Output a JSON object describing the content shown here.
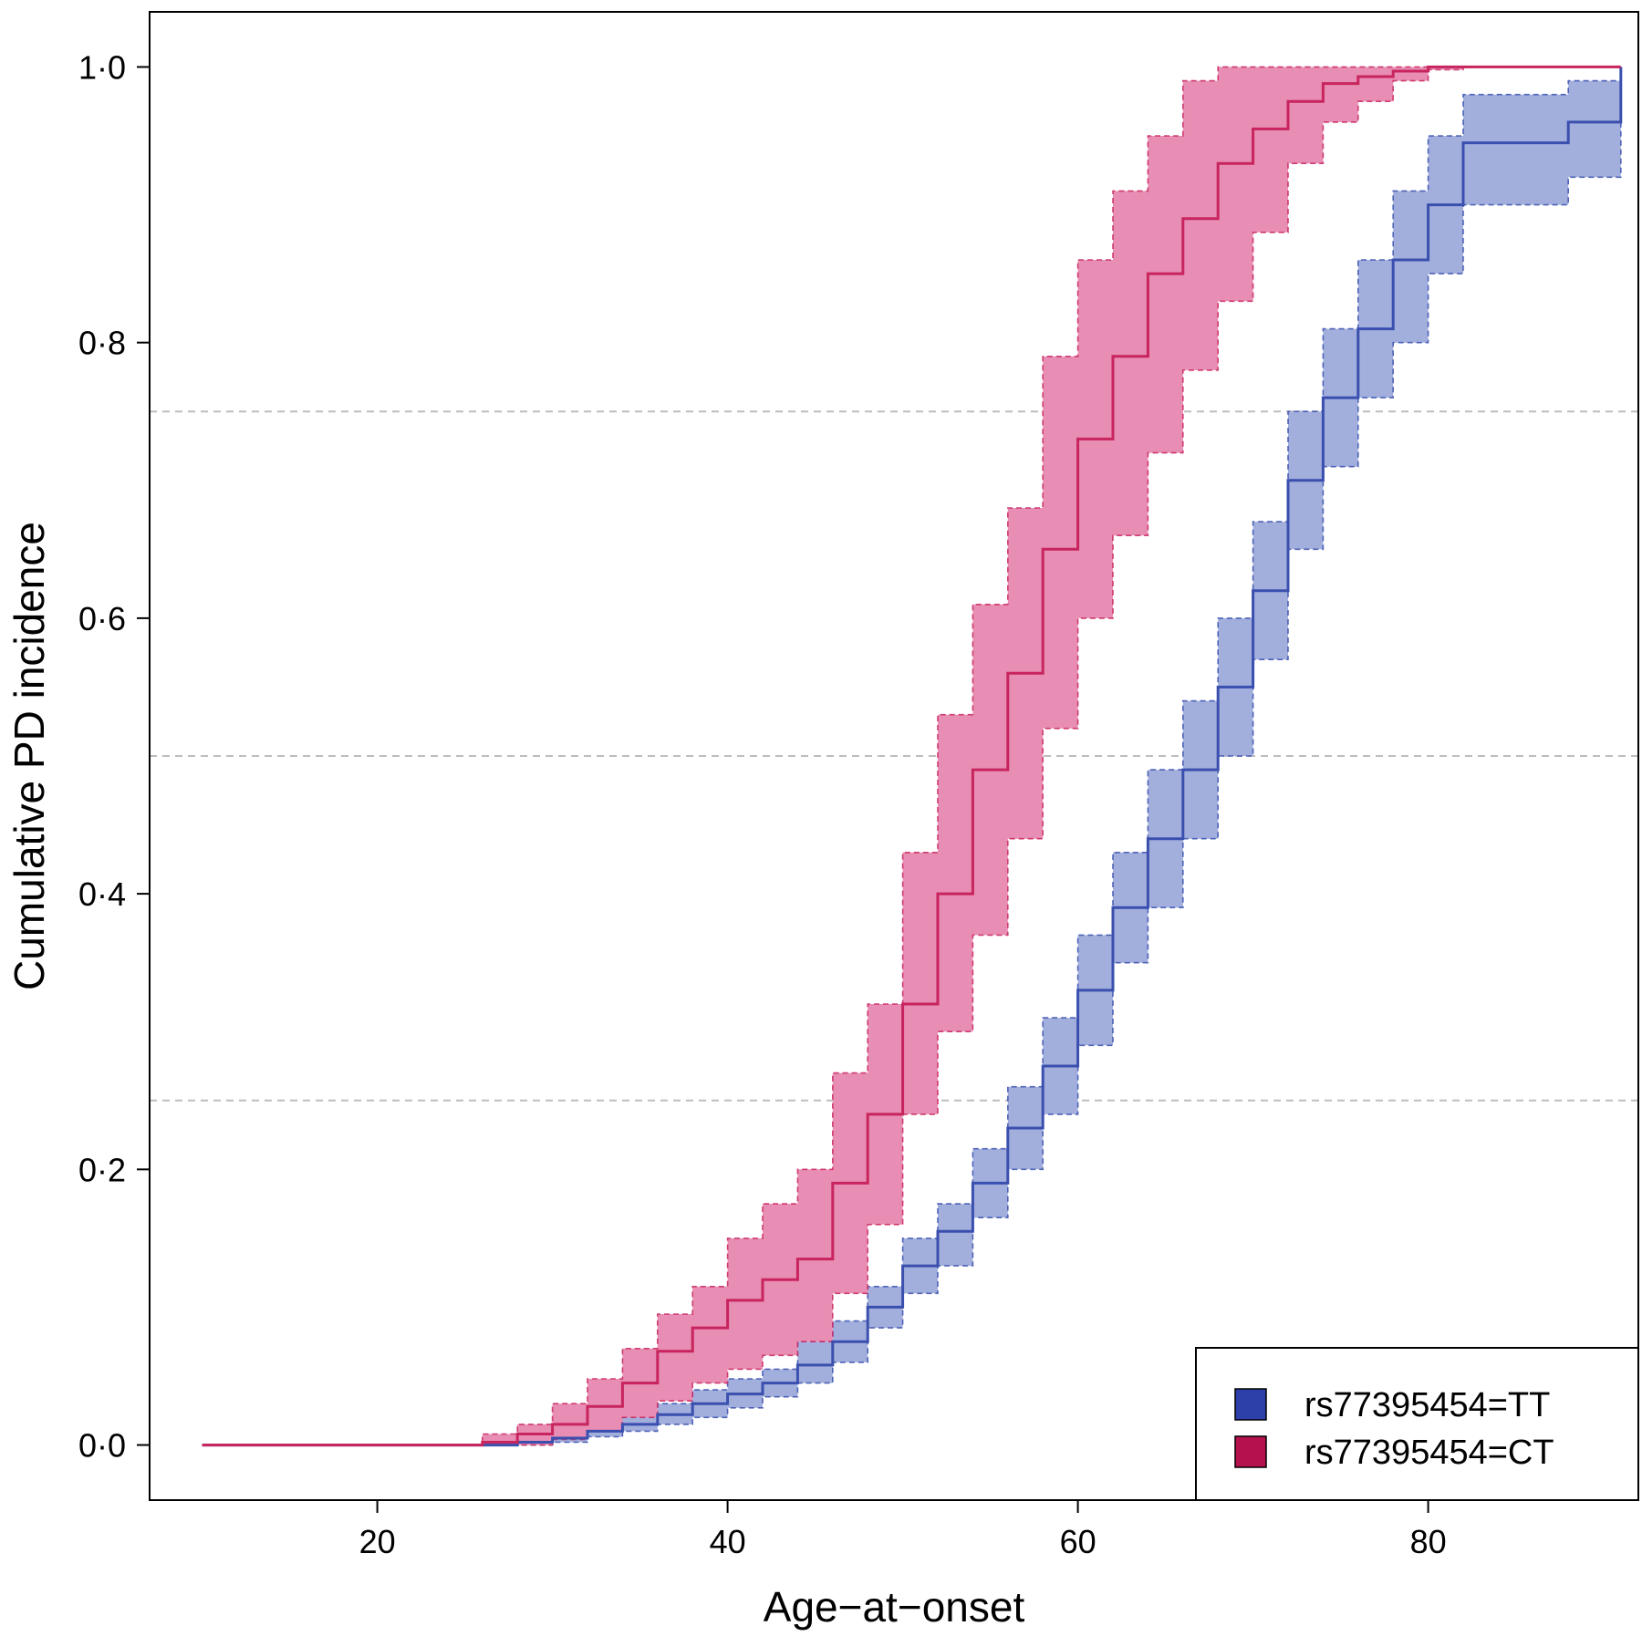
{
  "chart_data": {
    "type": "line",
    "title": "",
    "xlabel": "Age−at−onset",
    "ylabel": "Cumulative PD incidence",
    "xlim": [
      7,
      92
    ],
    "ylim": [
      -0.04,
      1.04
    ],
    "x_ticks": [
      {
        "value": 20,
        "label": "20"
      },
      {
        "value": 40,
        "label": "40"
      },
      {
        "value": 60,
        "label": "60"
      },
      {
        "value": 80,
        "label": "80"
      }
    ],
    "y_ticks": [
      {
        "value": 0.0,
        "label": "0·0"
      },
      {
        "value": 0.2,
        "label": "0·2"
      },
      {
        "value": 0.4,
        "label": "0·4"
      },
      {
        "value": 0.6,
        "label": "0·6"
      },
      {
        "value": 0.8,
        "label": "0·8"
      },
      {
        "value": 1.0,
        "label": "1·0"
      }
    ],
    "reference_lines_y": [
      0.25,
      0.5,
      0.75
    ],
    "grid": false,
    "legend_position": "bottom-right",
    "series": [
      {
        "name": "rs77395454=TT",
        "line_color": "#3a4fae",
        "fill_color": "#a2afdd",
        "legend_color": "#2d3fa8",
        "x": [
          10,
          24,
          28,
          30,
          32,
          34,
          36,
          38,
          40,
          42,
          44,
          46,
          48,
          50,
          52,
          54,
          56,
          58,
          60,
          62,
          64,
          66,
          68,
          70,
          72,
          74,
          76,
          78,
          80,
          82,
          84,
          86,
          88,
          91
        ],
        "y": [
          0,
          0,
          0.002,
          0.005,
          0.01,
          0.015,
          0.022,
          0.03,
          0.037,
          0.045,
          0.058,
          0.075,
          0.1,
          0.13,
          0.155,
          0.19,
          0.23,
          0.275,
          0.33,
          0.39,
          0.44,
          0.49,
          0.55,
          0.62,
          0.7,
          0.76,
          0.81,
          0.86,
          0.9,
          0.945,
          0.945,
          0.945,
          0.96,
          1.0
        ],
        "lower": [
          0,
          0,
          0,
          0.002,
          0.006,
          0.01,
          0.015,
          0.02,
          0.027,
          0.035,
          0.045,
          0.06,
          0.085,
          0.11,
          0.13,
          0.165,
          0.2,
          0.24,
          0.29,
          0.35,
          0.39,
          0.44,
          0.5,
          0.57,
          0.65,
          0.71,
          0.76,
          0.8,
          0.85,
          0.9,
          0.9,
          0.9,
          0.92,
          1.0
        ],
        "upper": [
          0,
          0,
          0.005,
          0.008,
          0.015,
          0.022,
          0.03,
          0.04,
          0.048,
          0.055,
          0.075,
          0.09,
          0.115,
          0.15,
          0.175,
          0.215,
          0.26,
          0.31,
          0.37,
          0.43,
          0.49,
          0.54,
          0.6,
          0.67,
          0.75,
          0.81,
          0.86,
          0.91,
          0.95,
          0.98,
          0.98,
          0.98,
          0.99,
          1.0
        ]
      },
      {
        "name": "rs77395454=CT",
        "line_color": "#c8245e",
        "fill_color": "#e88db3",
        "legend_color": "#b5114f",
        "x": [
          10,
          24,
          26,
          28,
          30,
          32,
          34,
          36,
          38,
          40,
          42,
          44,
          46,
          48,
          50,
          52,
          54,
          56,
          58,
          60,
          62,
          64,
          66,
          68,
          70,
          72,
          74,
          76,
          78,
          80,
          82,
          91
        ],
        "y": [
          0,
          0,
          0.002,
          0.008,
          0.015,
          0.028,
          0.045,
          0.068,
          0.085,
          0.105,
          0.12,
          0.135,
          0.19,
          0.24,
          0.32,
          0.4,
          0.49,
          0.56,
          0.65,
          0.73,
          0.79,
          0.85,
          0.89,
          0.93,
          0.955,
          0.975,
          0.988,
          0.993,
          0.997,
          1.0,
          1.0,
          1.0
        ],
        "lower": [
          0,
          0,
          0,
          0,
          0.004,
          0.01,
          0.02,
          0.032,
          0.045,
          0.055,
          0.065,
          0.075,
          0.11,
          0.16,
          0.24,
          0.3,
          0.37,
          0.44,
          0.52,
          0.6,
          0.66,
          0.72,
          0.78,
          0.83,
          0.88,
          0.93,
          0.96,
          0.975,
          0.99,
          0.998,
          1.0,
          1.0
        ],
        "upper": [
          0,
          0,
          0.008,
          0.015,
          0.03,
          0.048,
          0.07,
          0.095,
          0.115,
          0.15,
          0.175,
          0.2,
          0.27,
          0.32,
          0.43,
          0.53,
          0.61,
          0.68,
          0.79,
          0.86,
          0.91,
          0.95,
          0.99,
          1.0,
          1.0,
          1.0,
          1.0,
          1.0,
          1.0,
          1.0,
          1.0,
          1.0
        ]
      }
    ]
  }
}
